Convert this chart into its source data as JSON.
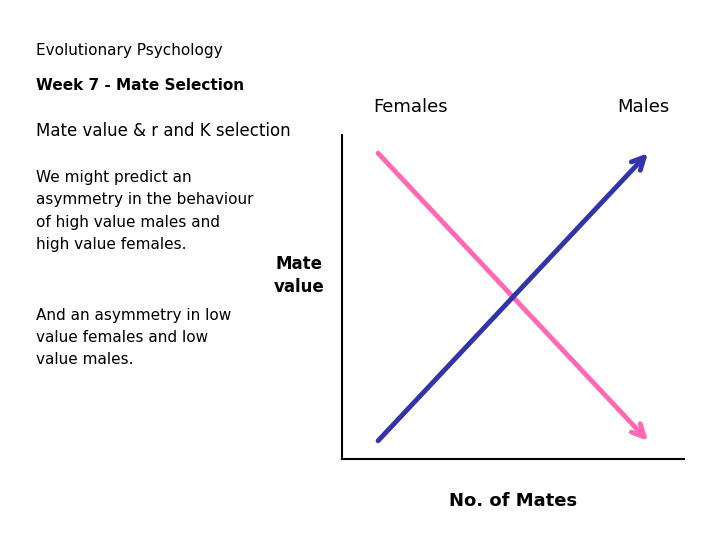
{
  "title_line1": "Evolutionary Psychology",
  "title_line2": "Week 7 - Mate Selection",
  "subtitle": "Mate value & r and K selection",
  "text1": "We might predict an\nasymmetry in the behaviour\nof high value males and\nhigh value females.",
  "text2": "And an asymmetry in low\nvalue females and low\nvalue males.",
  "ylabel": "Mate\nvalue",
  "xlabel": "No. of Mates",
  "females_label": "Females",
  "males_label": "Males",
  "females_color": "#FF69B4",
  "males_color": "#3333AA",
  "bg_color": "#FFFFFF",
  "title1_fontsize": 11,
  "title2_fontsize": 11,
  "subtitle_fontsize": 12,
  "body_fontsize": 11,
  "label_fontsize": 12,
  "axis_label_fontsize": 12
}
